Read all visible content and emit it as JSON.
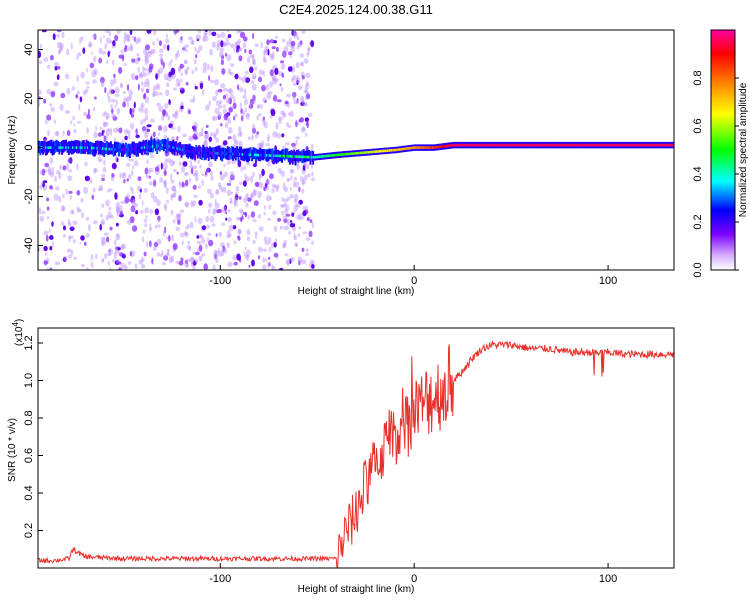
{
  "title": "C2E4.2025.124.00.38.G11",
  "colors": {
    "snr_line": "#e8302b",
    "frame": "#000000",
    "spectrogram_bg": "#ffffff"
  },
  "chart_data": [
    {
      "type": "heatmap",
      "name": "spectrogram",
      "xlabel": "Height of straight line (km)",
      "ylabel": "Frequency (Hz)",
      "xlim": [
        -194,
        134
      ],
      "ylim": [
        -50,
        48
      ],
      "xticks": [
        -100,
        0,
        100
      ],
      "xtick_labels": [
        "-100",
        "0",
        "100"
      ],
      "yticks": [
        -40,
        -20,
        0,
        20,
        40
      ],
      "ytick_labels": [
        "-40",
        "-20",
        "0",
        "20",
        "40"
      ],
      "colorbar": {
        "label": "Normalized spectral amplitude",
        "range": [
          0,
          1
        ],
        "ticks": [
          0,
          0.2,
          0.4,
          0.6,
          0.8
        ],
        "tick_labels": [
          "0.0",
          "0.2",
          "0.4",
          "0.6",
          "0.8"
        ],
        "colormap": [
          "#ffffff",
          "#7a00ff",
          "#0000ff",
          "#00ffff",
          "#00ff00",
          "#ffff00",
          "#ff8000",
          "#ff0000",
          "#ff00a0"
        ]
      },
      "noise_regions": [
        {
          "x": [
            -194,
            -52
          ],
          "density": "high"
        }
      ],
      "signal_track": {
        "x": [
          -194,
          -170,
          -150,
          -130,
          -114,
          -52,
          -40,
          -25,
          -10,
          0,
          10,
          20,
          60,
          100,
          134
        ],
        "frequency": [
          0,
          0,
          -1,
          1,
          -2,
          -4,
          -3,
          -2,
          -1,
          0,
          0,
          1,
          1,
          1,
          1
        ],
        "amplitude": [
          0.3,
          0.35,
          0.25,
          0.3,
          0.2,
          0.4,
          0.5,
          0.6,
          0.7,
          0.75,
          0.85,
          0.95,
          0.95,
          0.95,
          0.95
        ]
      }
    },
    {
      "type": "line",
      "name": "snr",
      "xlabel": "Height of straight line (km)",
      "ylabel": "SNR (10 * v/v)",
      "multiplier_label": "(x10",
      "multiplier_exponent": "4",
      "xlim": [
        -194,
        134
      ],
      "ylim": [
        0,
        1.28
      ],
      "xticks": [
        -100,
        0,
        100
      ],
      "xtick_labels": [
        "-100",
        "0",
        "100"
      ],
      "yticks": [
        0.2,
        0.4,
        0.6,
        0.8,
        1.0,
        1.2
      ],
      "ytick_labels": [
        "0.2",
        "0.4",
        "0.6",
        "0.8",
        "1.0",
        "1.2"
      ],
      "series": [
        {
          "x": [
            -194,
            -185,
            -178,
            -176,
            -170,
            -150,
            -120,
            -100,
            -80,
            -60,
            -50,
            -40,
            -35,
            -32,
            -30,
            -25,
            -20,
            -15,
            -10,
            -5,
            0,
            5,
            10,
            15,
            20,
            25,
            30,
            35,
            40,
            50,
            60,
            70,
            80,
            90,
            95,
            100,
            110,
            120,
            134
          ],
          "y": [
            0.04,
            0.04,
            0.05,
            0.1,
            0.06,
            0.05,
            0.05,
            0.05,
            0.05,
            0.05,
            0.05,
            0.05,
            0.2,
            0.25,
            0.3,
            0.45,
            0.55,
            0.65,
            0.72,
            0.76,
            0.8,
            0.88,
            0.92,
            0.95,
            1.0,
            1.05,
            1.12,
            1.17,
            1.19,
            1.19,
            1.17,
            1.17,
            1.15,
            1.15,
            1.15,
            1.15,
            1.14,
            1.14,
            1.14
          ]
        }
      ]
    }
  ]
}
